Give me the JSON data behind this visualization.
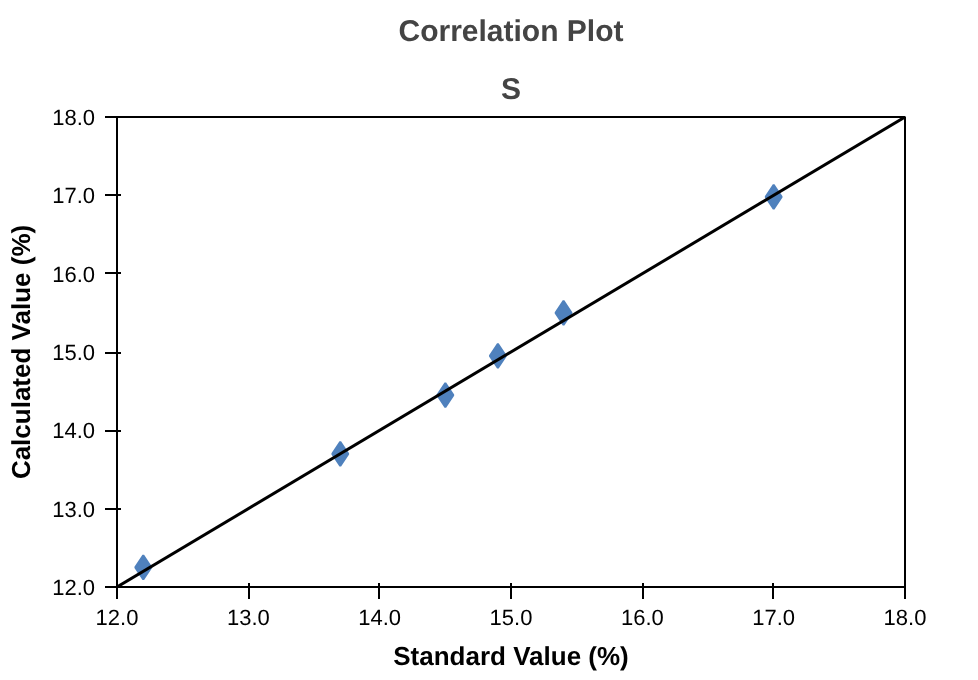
{
  "chart_data": {
    "type": "scatter",
    "title": "Correlation Plot",
    "subtitle": "S",
    "xlabel": "Standard Value (%)",
    "ylabel": "Calculated Value (%)",
    "marker": "diamond",
    "grid": false,
    "xlim": [
      12,
      18
    ],
    "ylim": [
      12,
      18
    ],
    "xticks": [
      {
        "value": 12,
        "label": "12.0"
      },
      {
        "value": 13,
        "label": "13.0"
      },
      {
        "value": 14,
        "label": "14.0"
      },
      {
        "value": 15,
        "label": "15.0"
      },
      {
        "value": 16,
        "label": "16.0"
      },
      {
        "value": 17,
        "label": "17.0"
      },
      {
        "value": 18,
        "label": "18.0"
      }
    ],
    "yticks": [
      {
        "value": 12,
        "label": "12.0"
      },
      {
        "value": 13,
        "label": "13.0"
      },
      {
        "value": 14,
        "label": "14.0"
      },
      {
        "value": 15,
        "label": "15.0"
      },
      {
        "value": 16,
        "label": "16.0"
      },
      {
        "value": 17,
        "label": "17.0"
      },
      {
        "value": 18,
        "label": "18.0"
      }
    ],
    "series": [
      {
        "color": "#4f81bd",
        "x": [
          12.2,
          13.7,
          14.5,
          14.9,
          15.4,
          17.0
        ],
        "values": [
          12.25,
          13.7,
          14.45,
          14.95,
          15.5,
          16.98
        ]
      },
      {
        "type": "line",
        "color": "#000000",
        "marker": "none",
        "x": [
          12,
          18
        ],
        "values": [
          12,
          18
        ]
      }
    ]
  }
}
